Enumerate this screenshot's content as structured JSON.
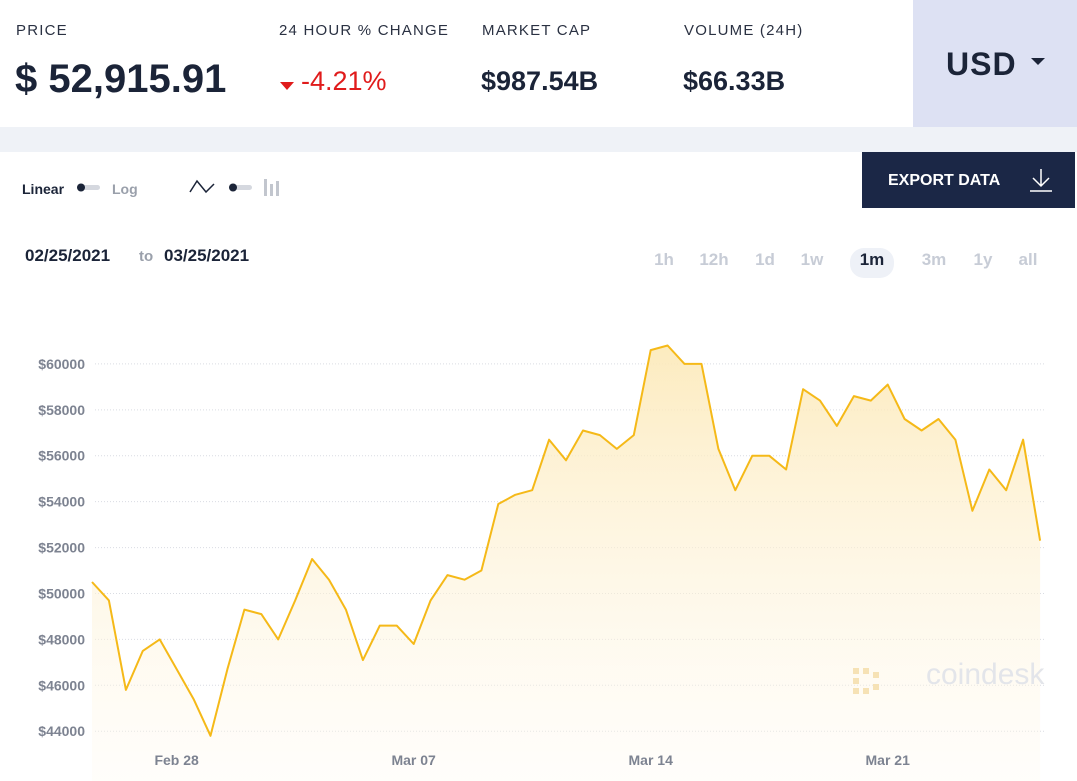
{
  "header": {
    "stats": [
      {
        "label": "PRICE",
        "value": "$ 52,915.91"
      },
      {
        "label": "24 HOUR % CHANGE",
        "value": "-4.21%"
      },
      {
        "label": "MARKET CAP",
        "value": "$987.54B"
      },
      {
        "label": "VOLUME (24H)",
        "value": "$66.33B"
      }
    ],
    "currency": "USD"
  },
  "controls": {
    "scale_linear": "Linear",
    "scale_log": "Log",
    "export": "EXPORT DATA",
    "date_from": "02/25/2021",
    "date_sep": "to",
    "date_to": "03/25/2021",
    "ranges": [
      "1h",
      "12h",
      "1d",
      "1w",
      "1m",
      "3m",
      "1y",
      "all"
    ],
    "selected_range": "1m"
  },
  "watermark": "coindesk",
  "chart_data": {
    "type": "area",
    "color": "#f5b918",
    "grid": true,
    "categories": [
      null,
      null,
      null,
      null,
      null,
      "Feb 28",
      null,
      null,
      null,
      null,
      null,
      null,
      null,
      null,
      null,
      null,
      null,
      null,
      null,
      "Mar 07",
      null,
      null,
      null,
      null,
      null,
      null,
      null,
      null,
      null,
      null,
      null,
      null,
      null,
      "Mar 14",
      null,
      null,
      null,
      null,
      null,
      null,
      null,
      null,
      null,
      null,
      null,
      null,
      null,
      "Mar 21",
      null,
      null,
      null,
      null,
      null,
      null,
      null,
      null,
      null
    ],
    "values": [
      50500,
      49700,
      45800,
      47500,
      48000,
      46700,
      45400,
      43800,
      46700,
      49300,
      49100,
      48000,
      49700,
      51500,
      50600,
      49300,
      47100,
      48600,
      48600,
      47800,
      49700,
      50800,
      50600,
      51000,
      53900,
      54300,
      54500,
      56700,
      55800,
      57100,
      56900,
      56300,
      56900,
      60600,
      60800,
      60000,
      60000,
      56300,
      54500,
      56000,
      56000,
      55400,
      58900,
      58400,
      57300,
      58600,
      58400,
      59100,
      57600,
      57100,
      57600,
      56700,
      53600,
      55400,
      54500,
      56700,
      52300
    ],
    "ylim": [
      43400,
      62000
    ],
    "yticks": [
      {
        "value": 44000,
        "label": "$44000"
      },
      {
        "value": 46000,
        "label": "$46000"
      },
      {
        "value": 48000,
        "label": "$48000"
      },
      {
        "value": 50000,
        "label": "$50000"
      },
      {
        "value": 52000,
        "label": "$52000"
      },
      {
        "value": 54000,
        "label": "$54000"
      },
      {
        "value": 56000,
        "label": "$56000"
      },
      {
        "value": 58000,
        "label": "$58000"
      },
      {
        "value": 60000,
        "label": "$60000"
      }
    ]
  }
}
